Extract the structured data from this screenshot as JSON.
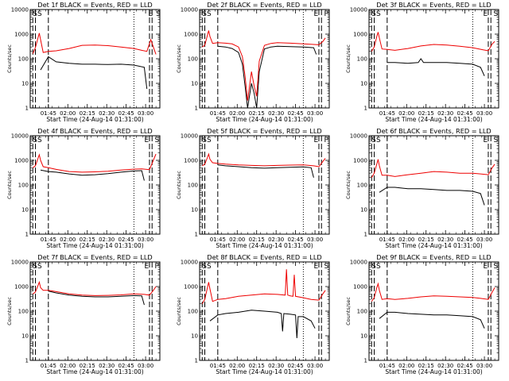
{
  "page": {
    "x_label": "Start Time (24-Aug-14 01:31:00)",
    "y_label": "Counts/sec",
    "y_ticks": [
      "1",
      "10",
      "100",
      "1000",
      "10000"
    ],
    "x_ticks": [
      "01:45",
      "02:00",
      "02:15",
      "02:30",
      "02:45",
      "03:00"
    ],
    "series_colors": {
      "events": "#000000",
      "lld": "#ee0000"
    }
  },
  "chart_data": [
    {
      "type": "line",
      "title": "Det 1f BLACK = Events, RED = LLD",
      "x_axis": "minutes after 01:31:00",
      "xlim": [
        0,
        100
      ],
      "ylim": [
        1,
        10000
      ],
      "y_scale": "log",
      "markers": [
        {
          "label": "SS",
          "x": 2
        },
        {
          "label": "E",
          "x": 91
        },
        {
          "label": "S",
          "x": 97
        }
      ],
      "vlines_dashed": [
        2,
        4,
        14,
        92,
        94
      ],
      "vlines_dotted": [
        80
      ],
      "series": [
        {
          "name": "Events",
          "color": "#000000",
          "x": [
            8,
            14,
            20,
            30,
            40,
            50,
            60,
            70,
            80,
            88,
            90
          ],
          "y": [
            35,
            120,
            75,
            65,
            60,
            60,
            58,
            60,
            55,
            45,
            6
          ]
        },
        {
          "name": "LLD",
          "color": "#ee0000",
          "x": [
            2,
            4,
            6,
            7,
            8,
            10,
            14,
            20,
            30,
            40,
            50,
            60,
            70,
            80,
            86,
            90,
            93,
            95,
            97
          ],
          "y": [
            160,
            280,
            700,
            1100,
            600,
            180,
            200,
            210,
            260,
            350,
            360,
            340,
            300,
            260,
            220,
            200,
            600,
            300,
            150
          ]
        }
      ]
    },
    {
      "type": "line",
      "title": "Det 2f BLACK = Events, RED = LLD",
      "x_axis": "minutes after 01:31:00",
      "xlim": [
        0,
        100
      ],
      "ylim": [
        1,
        10000
      ],
      "y_scale": "log",
      "markers": [
        {
          "label": "SS",
          "x": 2
        },
        {
          "label": "E",
          "x": 88
        },
        {
          "label": "P",
          "x": 96
        }
      ],
      "vlines_dashed": [
        2,
        4,
        14,
        92,
        94
      ],
      "vlines_dotted": [
        80
      ],
      "series": [
        {
          "name": "Events",
          "color": "#000000",
          "x": [
            14,
            20,
            25,
            30,
            33,
            35,
            37,
            40,
            42,
            44,
            46,
            50,
            55,
            60,
            70,
            80,
            88,
            90
          ],
          "y": [
            320,
            300,
            260,
            180,
            60,
            8,
            1,
            10,
            4,
            1,
            30,
            250,
            300,
            320,
            310,
            300,
            280,
            150
          ]
        },
        {
          "name": "LLD",
          "color": "#ee0000",
          "x": [
            2,
            4,
            6,
            7,
            8,
            10,
            14,
            20,
            25,
            30,
            33,
            35,
            37,
            40,
            42,
            44,
            46,
            50,
            55,
            60,
            70,
            80,
            88,
            92,
            95,
            97
          ],
          "y": [
            300,
            350,
            900,
            1400,
            800,
            420,
            450,
            430,
            400,
            300,
            120,
            20,
            2,
            30,
            8,
            3,
            80,
            350,
            420,
            450,
            430,
            400,
            380,
            370,
            500,
            700
          ]
        }
      ]
    },
    {
      "type": "line",
      "title": "Det 3f BLACK = Events, RED = LLD",
      "x_axis": "minutes after 01:31:00",
      "xlim": [
        0,
        100
      ],
      "ylim": [
        1,
        10000
      ],
      "y_scale": "log",
      "markers": [
        {
          "label": "SS",
          "x": 2
        },
        {
          "label": "E",
          "x": 88
        },
        {
          "label": "S",
          "x": 96
        }
      ],
      "vlines_dashed": [
        2,
        4,
        14,
        92,
        94
      ],
      "vlines_dotted": [
        80
      ],
      "series": [
        {
          "name": "Events",
          "color": "#000000",
          "x": [
            14,
            20,
            30,
            38,
            40,
            42,
            50,
            60,
            70,
            80,
            86,
            89
          ],
          "y": [
            70,
            70,
            65,
            70,
            100,
            70,
            70,
            70,
            65,
            60,
            45,
            20
          ]
        },
        {
          "name": "LLD",
          "color": "#ee0000",
          "x": [
            2,
            4,
            6,
            7,
            8,
            10,
            14,
            20,
            30,
            40,
            50,
            60,
            70,
            80,
            88,
            92,
            95,
            97
          ],
          "y": [
            200,
            300,
            800,
            1200,
            700,
            250,
            240,
            220,
            260,
            330,
            380,
            360,
            320,
            280,
            230,
            210,
            400,
            500
          ]
        }
      ]
    },
    {
      "type": "line",
      "title": "Det 4f BLACK = Events, RED = LLD",
      "x_axis": "minutes after 01:31:00",
      "xlim": [
        0,
        100
      ],
      "ylim": [
        1,
        10000
      ],
      "y_scale": "log",
      "markers": [
        {
          "label": "SS",
          "x": 2
        },
        {
          "label": "E",
          "x": 88
        },
        {
          "label": "S",
          "x": 96
        }
      ],
      "vlines_dashed": [
        2,
        4,
        14,
        92,
        94
      ],
      "vlines_dotted": [
        80
      ],
      "series": [
        {
          "name": "Events",
          "color": "#000000",
          "x": [
            8,
            14,
            20,
            30,
            40,
            50,
            60,
            70,
            80,
            86,
            88
          ],
          "y": [
            400,
            350,
            330,
            280,
            250,
            260,
            290,
            330,
            370,
            380,
            150
          ]
        },
        {
          "name": "LLD",
          "color": "#ee0000",
          "x": [
            2,
            4,
            6,
            7,
            8,
            10,
            14,
            20,
            30,
            40,
            50,
            60,
            70,
            80,
            86,
            92,
            95,
            97
          ],
          "y": [
            500,
            600,
            1200,
            1700,
            1000,
            550,
            500,
            430,
            350,
            330,
            340,
            360,
            400,
            440,
            450,
            420,
            1000,
            1800
          ]
        }
      ]
    },
    {
      "type": "line",
      "title": "Det 5f BLACK = Events, RED = LLD",
      "x_axis": "minutes after 01:31:00",
      "xlim": [
        0,
        100
      ],
      "ylim": [
        1,
        10000
      ],
      "y_scale": "log",
      "markers": [
        {
          "label": "SS",
          "x": 2
        },
        {
          "label": "E",
          "x": 88
        },
        {
          "label": "P",
          "x": 96
        }
      ],
      "vlines_dashed": [
        2,
        4,
        14,
        92,
        94
      ],
      "vlines_dotted": [
        80
      ],
      "series": [
        {
          "name": "Events",
          "color": "#000000",
          "x": [
            14,
            20,
            30,
            40,
            50,
            60,
            70,
            80,
            86,
            88
          ],
          "y": [
            650,
            600,
            550,
            500,
            480,
            500,
            520,
            540,
            500,
            200
          ]
        },
        {
          "name": "LLD",
          "color": "#ee0000",
          "x": [
            2,
            4,
            6,
            7,
            8,
            10,
            14,
            20,
            30,
            40,
            50,
            60,
            70,
            80,
            88,
            92,
            95,
            97
          ],
          "y": [
            600,
            700,
            1300,
            1800,
            1100,
            800,
            750,
            700,
            650,
            620,
            600,
            620,
            640,
            650,
            600,
            550,
            900,
            1200
          ]
        }
      ]
    },
    {
      "type": "line",
      "title": "Det 6f BLACK = Events, RED = LLD",
      "x_axis": "minutes after 01:31:00",
      "xlim": [
        0,
        100
      ],
      "ylim": [
        1,
        10000
      ],
      "y_scale": "log",
      "markers": [
        {
          "label": "SS",
          "x": 2
        },
        {
          "label": "E",
          "x": 88
        },
        {
          "label": "S",
          "x": 96
        }
      ],
      "vlines_dashed": [
        2,
        4,
        14,
        92,
        94
      ],
      "vlines_dotted": [
        80
      ],
      "series": [
        {
          "name": "Events",
          "color": "#000000",
          "x": [
            8,
            14,
            20,
            30,
            40,
            50,
            60,
            70,
            80,
            86,
            89
          ],
          "y": [
            50,
            80,
            80,
            70,
            70,
            65,
            60,
            60,
            55,
            45,
            15
          ]
        },
        {
          "name": "LLD",
          "color": "#ee0000",
          "x": [
            2,
            4,
            6,
            7,
            8,
            10,
            14,
            20,
            30,
            40,
            50,
            60,
            70,
            80,
            86,
            92,
            95,
            97
          ],
          "y": [
            200,
            300,
            700,
            1100,
            600,
            250,
            250,
            220,
            260,
            300,
            350,
            330,
            300,
            300,
            280,
            260,
            500,
            700
          ]
        }
      ]
    },
    {
      "type": "line",
      "title": "Det 7f BLACK = Events, RED = LLD",
      "x_axis": "minutes after 01:31:00",
      "xlim": [
        0,
        100
      ],
      "ylim": [
        1,
        10000
      ],
      "y_scale": "log",
      "markers": [
        {
          "label": "SS",
          "x": 2
        },
        {
          "label": "E",
          "x": 88
        },
        {
          "label": "P",
          "x": 96
        }
      ],
      "vlines_dashed": [
        2,
        4,
        14,
        92,
        94
      ],
      "vlines_dotted": [
        80
      ],
      "series": [
        {
          "name": "Events",
          "color": "#000000",
          "x": [
            14,
            20,
            30,
            40,
            50,
            60,
            70,
            80,
            86,
            88
          ],
          "y": [
            650,
            550,
            450,
            400,
            380,
            380,
            400,
            430,
            420,
            180
          ]
        },
        {
          "name": "LLD",
          "color": "#ee0000",
          "x": [
            2,
            4,
            6,
            7,
            8,
            10,
            14,
            20,
            30,
            40,
            50,
            60,
            70,
            80,
            88,
            92,
            95,
            97
          ],
          "y": [
            500,
            600,
            1100,
            1500,
            900,
            700,
            700,
            620,
            500,
            450,
            430,
            440,
            460,
            500,
            480,
            450,
            700,
            1000
          ]
        }
      ]
    },
    {
      "type": "line",
      "title": "Det 8f BLACK = Events, RED = LLD",
      "x_axis": "minutes after 01:31:00",
      "xlim": [
        0,
        100
      ],
      "ylim": [
        1,
        10000
      ],
      "y_scale": "log",
      "markers": [
        {
          "label": "SS",
          "x": 2
        },
        {
          "label": "E",
          "x": 88
        },
        {
          "label": "S",
          "x": 96
        }
      ],
      "vlines_dashed": [
        2,
        4,
        14,
        92,
        94
      ],
      "vlines_dotted": [
        80
      ],
      "series": [
        {
          "name": "Events",
          "color": "#000000",
          "x": [
            8,
            14,
            20,
            30,
            40,
            50,
            60,
            63,
            64,
            65,
            70,
            74,
            75,
            76,
            80,
            86,
            89
          ],
          "y": [
            40,
            70,
            80,
            90,
            110,
            100,
            90,
            80,
            15,
            80,
            75,
            70,
            8,
            60,
            60,
            40,
            20
          ]
        },
        {
          "name": "LLD",
          "color": "#ee0000",
          "x": [
            2,
            4,
            6,
            7,
            8,
            10,
            14,
            20,
            30,
            40,
            50,
            60,
            66,
            67,
            68,
            70,
            72,
            73,
            74,
            80,
            86,
            92,
            95,
            97
          ],
          "y": [
            200,
            300,
            900,
            1500,
            800,
            250,
            300,
            320,
            400,
            450,
            500,
            480,
            450,
            5000,
            450,
            420,
            400,
            3000,
            400,
            350,
            300,
            280,
            500,
            700
          ]
        }
      ]
    },
    {
      "type": "line",
      "title": "Det 9f BLACK = Events, RED = LLD",
      "x_axis": "minutes after 01:31:00",
      "xlim": [
        0,
        100
      ],
      "ylim": [
        1,
        10000
      ],
      "y_scale": "log",
      "markers": [
        {
          "label": "SS",
          "x": 2
        },
        {
          "label": "E",
          "x": 88
        },
        {
          "label": "S",
          "x": 96
        }
      ],
      "vlines_dashed": [
        2,
        4,
        14,
        92,
        94
      ],
      "vlines_dotted": [
        80
      ],
      "series": [
        {
          "name": "Events",
          "color": "#000000",
          "x": [
            8,
            14,
            20,
            30,
            40,
            50,
            60,
            70,
            80,
            86,
            89
          ],
          "y": [
            50,
            90,
            90,
            80,
            75,
            70,
            70,
            65,
            60,
            45,
            20
          ]
        },
        {
          "name": "LLD",
          "color": "#ee0000",
          "x": [
            2,
            4,
            6,
            7,
            8,
            10,
            14,
            20,
            30,
            40,
            50,
            60,
            70,
            80,
            86,
            92,
            95,
            97
          ],
          "y": [
            250,
            350,
            900,
            1300,
            700,
            300,
            320,
            300,
            330,
            380,
            420,
            400,
            380,
            360,
            330,
            300,
            600,
            900
          ]
        }
      ]
    }
  ]
}
